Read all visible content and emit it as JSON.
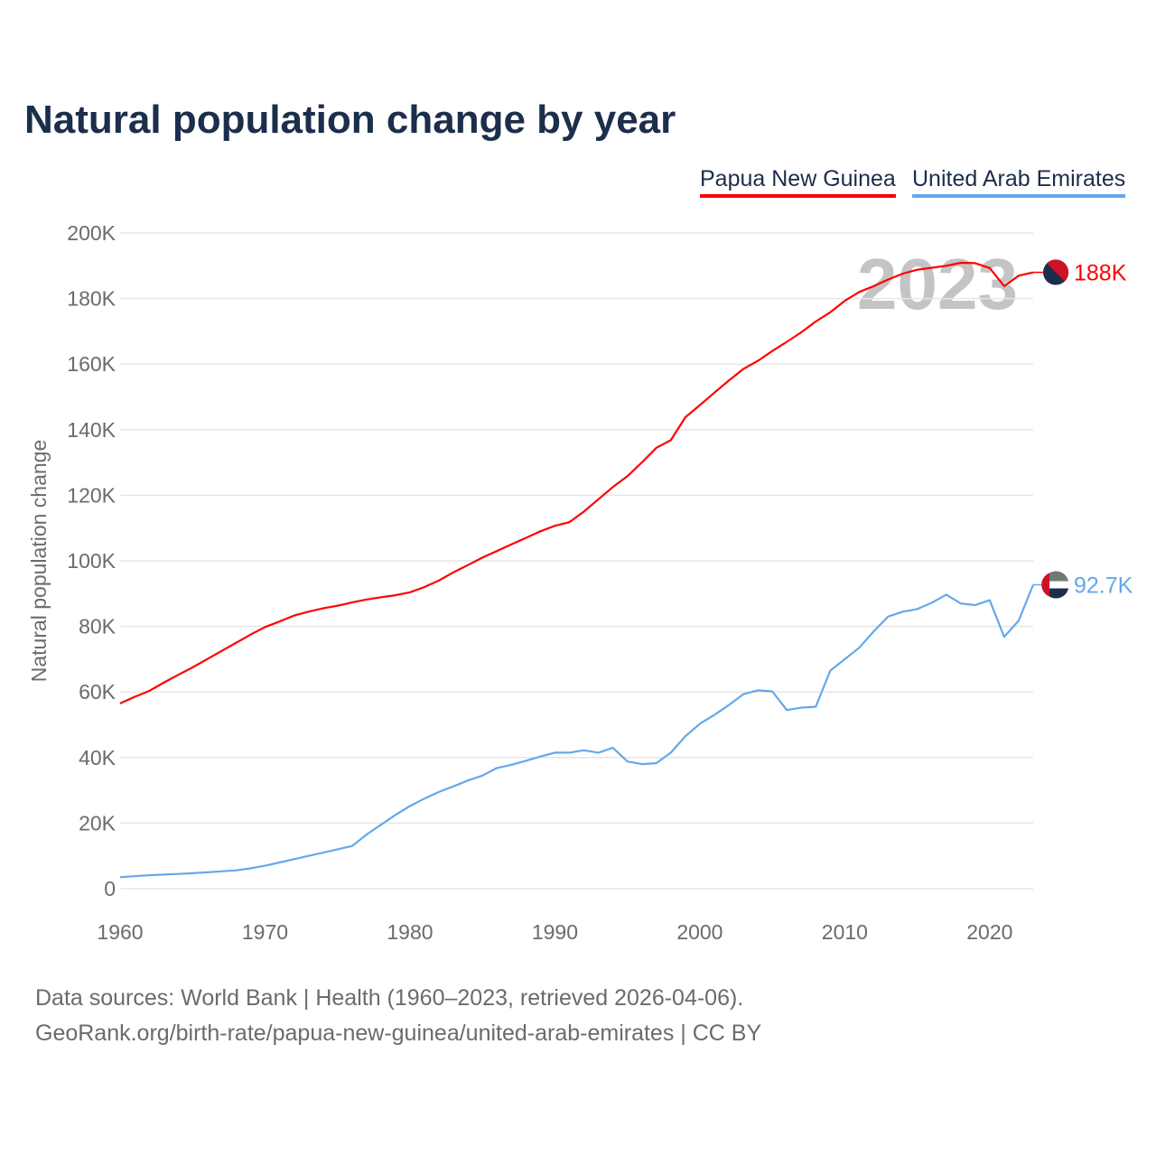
{
  "title": "Natural population change by year",
  "footer": {
    "line1": "Data sources: World Bank | Health (1960–2023, retrieved 2026-04-06).",
    "line2": "GeoRank.org/birth-rate/papua-new-guinea/united-arab-emirates | CC BY"
  },
  "chart_data": {
    "type": "line",
    "title": "Natural population change by year",
    "xlabel": "",
    "ylabel": "Natural population change",
    "xlim": [
      1960,
      2023
    ],
    "ylim": [
      0,
      200000
    ],
    "grid": true,
    "legend_position": "top-right",
    "year_watermark": "2023",
    "x_ticks": [
      "1960",
      "1970",
      "1980",
      "1990",
      "2000",
      "2010",
      "2020"
    ],
    "y_ticks": [
      {
        "value": 0,
        "label": "0"
      },
      {
        "value": 20000,
        "label": "20K"
      },
      {
        "value": 40000,
        "label": "40K"
      },
      {
        "value": 60000,
        "label": "60K"
      },
      {
        "value": 80000,
        "label": "80K"
      },
      {
        "value": 100000,
        "label": "100K"
      },
      {
        "value": 120000,
        "label": "120K"
      },
      {
        "value": 140000,
        "label": "140K"
      },
      {
        "value": 160000,
        "label": "160K"
      },
      {
        "value": 180000,
        "label": "180K"
      },
      {
        "value": 200000,
        "label": "200K"
      }
    ],
    "x_start": 1960,
    "series": [
      {
        "name": "Papua New Guinea",
        "color": "#ff0000",
        "end_label": "188K",
        "flag_icon": "papua-new-guinea-flag-icon",
        "values": [
          56500,
          58500,
          60300,
          62800,
          65200,
          67500,
          70000,
          72500,
          75000,
          77500,
          79800,
          81500,
          83300,
          84500,
          85500,
          86300,
          87300,
          88200,
          88900,
          89500,
          90400,
          92000,
          94000,
          96500,
          98700,
          101000,
          103000,
          105000,
          107000,
          109000,
          110700,
          111800,
          115000,
          118800,
          122500,
          125800,
          130000,
          134500,
          136800,
          143800,
          147500,
          151300,
          155000,
          158500,
          161000,
          164000,
          166800,
          169700,
          173000,
          175800,
          179300,
          182000,
          183800,
          185800,
          187600,
          188800,
          189400,
          190000,
          190900,
          190800,
          189300,
          183800,
          187000,
          188000
        ]
      },
      {
        "name": "United Arab Emirates",
        "color": "#64a8ea",
        "end_label": "92.7K",
        "flag_icon": "uae-flag-icon",
        "values": [
          3500,
          3800,
          4100,
          4300,
          4500,
          4700,
          5000,
          5300,
          5600,
          6200,
          7000,
          8000,
          9000,
          10000,
          11000,
          12000,
          13000,
          16500,
          19500,
          22500,
          25200,
          27500,
          29500,
          31200,
          33000,
          34500,
          36800,
          37800,
          39000,
          40300,
          41500,
          41500,
          42200,
          41500,
          43000,
          38800,
          38000,
          38300,
          41500,
          46500,
          50300,
          53000,
          56000,
          59300,
          60500,
          60200,
          54500,
          55200,
          55500,
          66500,
          70000,
          73500,
          78500,
          83000,
          84500,
          85300,
          87200,
          89700,
          87000,
          86500,
          88000,
          76800,
          81800,
          92700
        ]
      }
    ]
  }
}
